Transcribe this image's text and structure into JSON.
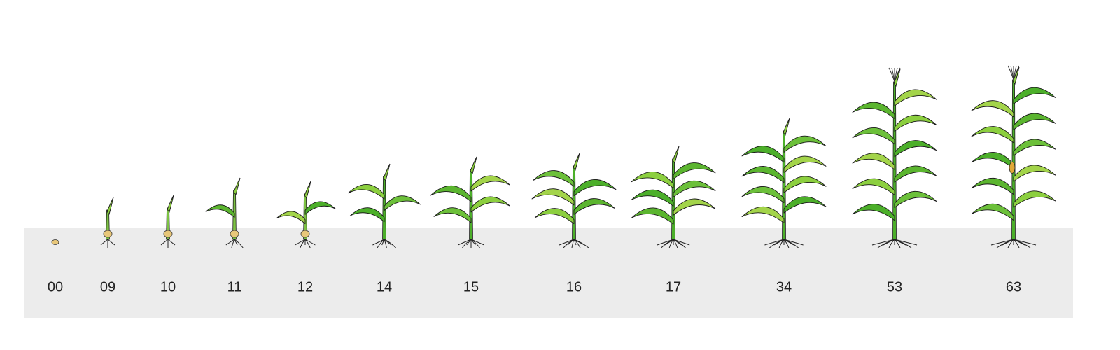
{
  "stages": [
    "00",
    "09",
    "10",
    "11",
    "12",
    "14",
    "15",
    "16",
    "17",
    "34",
    "53",
    "63"
  ]
}
